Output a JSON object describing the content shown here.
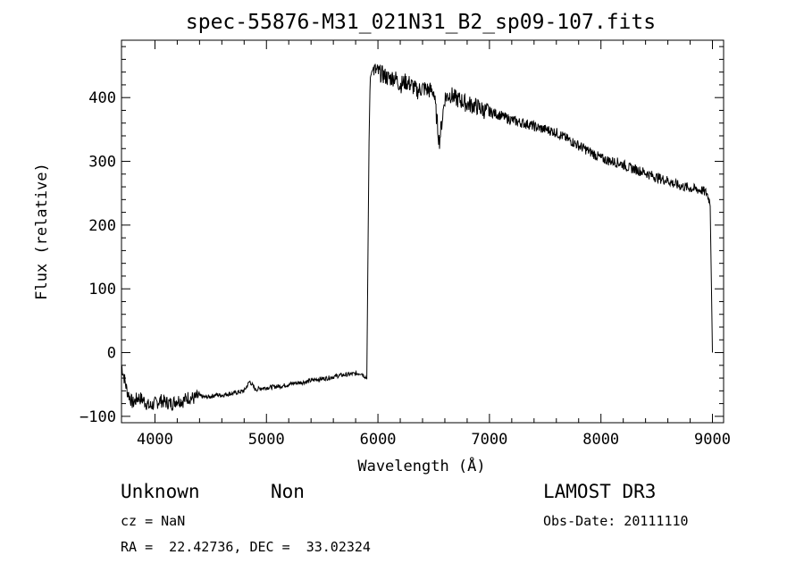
{
  "chart_data": {
    "type": "line",
    "title": "spec-55876-M31_021N31_B2_sp09-107.fits",
    "xlabel": "Wavelength (Å)",
    "ylabel": "Flux (relative)",
    "xlim": [
      3700,
      9100
    ],
    "ylim": [
      -110,
      490
    ],
    "xticks": [
      4000,
      5000,
      6000,
      7000,
      8000,
      9000
    ],
    "yticks": [
      -100,
      0,
      100,
      200,
      300,
      400
    ],
    "grid": false,
    "series": [
      {
        "x": [
          3700,
          3750,
          3800,
          3850,
          3900,
          3950,
          4000,
          4050,
          4100,
          4150,
          4200,
          4250,
          4300,
          4350,
          4400,
          4450,
          4500,
          4550,
          4600,
          4650,
          4700,
          4750,
          4800,
          4850,
          4900,
          4950,
          5000,
          5050,
          5100,
          5150,
          5200,
          5250,
          5300,
          5350,
          5400,
          5450,
          5500,
          5550,
          5600,
          5650,
          5700,
          5750,
          5800,
          5850,
          5900,
          5920,
          5930,
          5950,
          6000,
          6050,
          6100,
          6150,
          6200,
          6250,
          6300,
          6350,
          6400,
          6450,
          6500,
          6550,
          6600,
          6650,
          6700,
          6750,
          6800,
          6850,
          6900,
          6950,
          7000,
          7050,
          7100,
          7150,
          7200,
          7250,
          7300,
          7350,
          7400,
          7450,
          7500,
          7550,
          7600,
          7650,
          7700,
          7750,
          7800,
          7850,
          7900,
          7950,
          8000,
          8050,
          8100,
          8150,
          8200,
          8250,
          8300,
          8350,
          8400,
          8450,
          8500,
          8550,
          8600,
          8650,
          8700,
          8750,
          8800,
          8850,
          8900,
          8950,
          8980,
          9000
        ],
        "y": [
          -20,
          -60,
          -80,
          -70,
          -75,
          -85,
          -80,
          -75,
          -78,
          -80,
          -74,
          -76,
          -70,
          -72,
          -68,
          -70,
          -69,
          -66,
          -67,
          -65,
          -64,
          -62,
          -60,
          -45,
          -58,
          -56,
          -55,
          -54,
          -53,
          -52,
          -50,
          -48,
          -47,
          -46,
          -44,
          -42,
          -41,
          -40,
          -38,
          -36,
          -35,
          -34,
          -33,
          -32,
          -40,
          330,
          430,
          445,
          440,
          435,
          430,
          432,
          420,
          425,
          420,
          410,
          415,
          412,
          410,
          330,
          400,
          405,
          398,
          395,
          390,
          388,
          385,
          380,
          378,
          375,
          372,
          368,
          365,
          362,
          360,
          358,
          355,
          352,
          350,
          348,
          345,
          340,
          335,
          330,
          325,
          320,
          315,
          310,
          305,
          302,
          300,
          298,
          295,
          290,
          288,
          285,
          282,
          278,
          275,
          272,
          270,
          265,
          262,
          260,
          258,
          256,
          255,
          250,
          235,
          0
        ]
      }
    ]
  },
  "info": {
    "classification": "Unknown",
    "subclass": "Non",
    "survey": "LAMOST DR3",
    "redshift_line": "cz = NaN",
    "obs_date_line": "Obs-Date: 20111110",
    "coords_line": "RA =  22.42736, DEC =  33.02324"
  }
}
